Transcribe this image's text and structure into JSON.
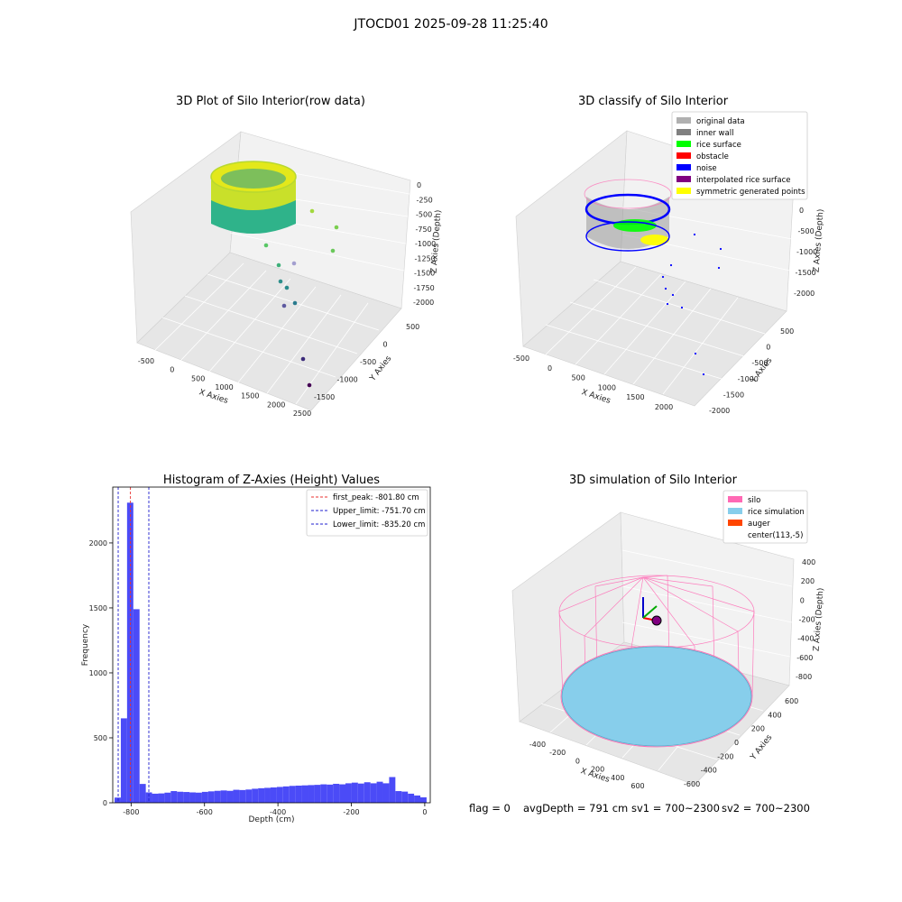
{
  "suptitle": "JTOCD01 2025-09-28 11:25:40",
  "status_line": {
    "flag": "flag = 0",
    "avg_depth": "avgDepth = 791 cm",
    "sv1": "sv1 = 700~2300",
    "sv2": "sv2 = 700~2300"
  },
  "colors": {
    "hist_bar": "#4b4bf7",
    "peak_line": "#e8312f",
    "limit_line": "#1f1fcf",
    "original": "#b0b0b0",
    "inner_wall": "#808080",
    "rice_surface": "#00ff00",
    "obstacle": "#ff0000",
    "noise": "#0000ff",
    "interp": "#800080",
    "symmetric": "#ffff00",
    "silo": "#ff69b4",
    "rice_sim": "#87ceeb",
    "auger": "#ff4500"
  },
  "chart_data": [
    {
      "type": "scatter3d",
      "title": "3D Plot of Silo Interior(row data)",
      "xlabel": "X Axies",
      "ylabel": "Y Axies",
      "zlabel": "Z Axies (Depth)",
      "x_ticks": [
        "-500",
        "0",
        "500",
        "1000",
        "1500",
        "2000",
        "2500"
      ],
      "y_ticks": [
        "500",
        "0",
        "-500",
        "-1000",
        "-1500"
      ],
      "z_ticks": [
        "0",
        "-250",
        "-500",
        "-750",
        "-1000",
        "-1250",
        "-1500",
        "-1750",
        "-2000"
      ]
    },
    {
      "type": "scatter3d",
      "title": "3D classify of Silo Interior",
      "xlabel": "X Axies",
      "ylabel": "Y Axies",
      "zlabel": "Z Axies (Depth)",
      "x_ticks": [
        "-500",
        "0",
        "500",
        "1000",
        "1500",
        "2000"
      ],
      "y_ticks": [
        "500",
        "0",
        "-500",
        "-1000",
        "-1500",
        "-2000"
      ],
      "z_ticks": [
        "0",
        "-500",
        "-1000",
        "-1500",
        "-2000"
      ],
      "legend": [
        {
          "label": "original data",
          "color": "#b0b0b0"
        },
        {
          "label": "inner wall",
          "color": "#808080"
        },
        {
          "label": "rice surface",
          "color": "#00ff00"
        },
        {
          "label": "obstacle",
          "color": "#ff0000"
        },
        {
          "label": "noise",
          "color": "#0000ff"
        },
        {
          "label": "interpolated rice surface",
          "color": "#800080"
        },
        {
          "label": "symmetric generated points",
          "color": "#ffff00"
        }
      ],
      "legend_position": "upper right"
    },
    {
      "type": "bar",
      "title": "Histogram of Z-Axies (Height) Values",
      "xlabel": "Depth (cm)",
      "ylabel": "Frequency",
      "xlim": [
        -850,
        15
      ],
      "ylim": [
        0,
        2430
      ],
      "x_ticks": [
        -800,
        -600,
        -400,
        -200,
        0
      ],
      "y_ticks": [
        0,
        500,
        1000,
        1500,
        2000
      ],
      "bin_width": 17,
      "bin_starts": [
        -845,
        -828,
        -811,
        -794,
        -777,
        -760,
        -743,
        -726,
        -709,
        -692,
        -675,
        -658,
        -641,
        -624,
        -607,
        -590,
        -573,
        -556,
        -539,
        -522,
        -505,
        -488,
        -471,
        -454,
        -437,
        -420,
        -403,
        -386,
        -369,
        -352,
        -335,
        -318,
        -301,
        -284,
        -267,
        -250,
        -233,
        -216,
        -199,
        -182,
        -165,
        -148,
        -131,
        -114,
        -97,
        -80,
        -63,
        -46,
        -29,
        -12
      ],
      "values": [
        40,
        650,
        2310,
        1490,
        145,
        80,
        70,
        72,
        78,
        90,
        85,
        83,
        80,
        78,
        84,
        88,
        92,
        95,
        92,
        100,
        98,
        102,
        108,
        112,
        115,
        118,
        122,
        126,
        130,
        132,
        134,
        136,
        138,
        142,
        140,
        146,
        142,
        150,
        155,
        148,
        158,
        150,
        162,
        150,
        198,
        90,
        86,
        70,
        56,
        42
      ],
      "vlines": [
        {
          "label": "first_peak: -801.80 cm",
          "x": -801.8,
          "color": "#e8312f"
        },
        {
          "label": "Upper_limit: -751.70 cm",
          "x": -751.7,
          "color": "#1f1fcf"
        },
        {
          "label": "Lower_limit: -835.20 cm",
          "x": -835.2,
          "color": "#1f1fcf"
        }
      ],
      "legend_position": "upper right"
    },
    {
      "type": "surface3d",
      "title": "3D simulation of Silo Interior",
      "xlabel": "X Axies",
      "ylabel": "Y Axies",
      "zlabel": "Z Axies (Depth)",
      "x_ticks": [
        "-400",
        "-200",
        "0",
        "200",
        "400",
        "600"
      ],
      "y_ticks": [
        "600",
        "400",
        "200",
        "0",
        "-200",
        "-400",
        "-600"
      ],
      "z_ticks": [
        "400",
        "200",
        "0",
        "-200",
        "-400",
        "-600",
        "-800"
      ],
      "legend": [
        {
          "label": "silo",
          "color": "#ff69b4"
        },
        {
          "label": "rice simulation",
          "color": "#87ceeb"
        },
        {
          "label": "auger",
          "color": "#ff4500"
        },
        {
          "label": "center(113,-5)",
          "color": ""
        }
      ],
      "legend_position": "upper right"
    }
  ]
}
